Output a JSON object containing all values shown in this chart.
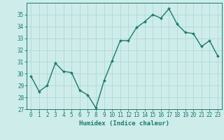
{
  "x": [
    0,
    1,
    2,
    3,
    4,
    5,
    6,
    7,
    8,
    9,
    10,
    11,
    12,
    13,
    14,
    15,
    16,
    17,
    18,
    19,
    20,
    21,
    22,
    23
  ],
  "y": [
    29.8,
    28.5,
    29.0,
    30.9,
    30.2,
    30.1,
    28.6,
    28.2,
    27.1,
    29.4,
    31.1,
    32.8,
    32.8,
    33.9,
    34.4,
    35.0,
    34.7,
    35.5,
    34.2,
    33.5,
    33.4,
    32.3,
    32.8,
    31.5
  ],
  "line_color": "#1a7a6e",
  "marker": "D",
  "marker_size": 2.0,
  "bg_color": "#ceecea",
  "grid_color": "#b0d8d5",
  "xlabel": "Humidex (Indice chaleur)",
  "ylim": [
    27,
    36
  ],
  "xlim": [
    -0.5,
    23.5
  ],
  "yticks": [
    27,
    28,
    29,
    30,
    31,
    32,
    33,
    34,
    35
  ],
  "xticks": [
    0,
    1,
    2,
    3,
    4,
    5,
    6,
    7,
    8,
    9,
    10,
    11,
    12,
    13,
    14,
    15,
    16,
    17,
    18,
    19,
    20,
    21,
    22,
    23
  ],
  "xlabel_fontsize": 6.5,
  "tick_fontsize": 5.5,
  "line_width": 1.0
}
